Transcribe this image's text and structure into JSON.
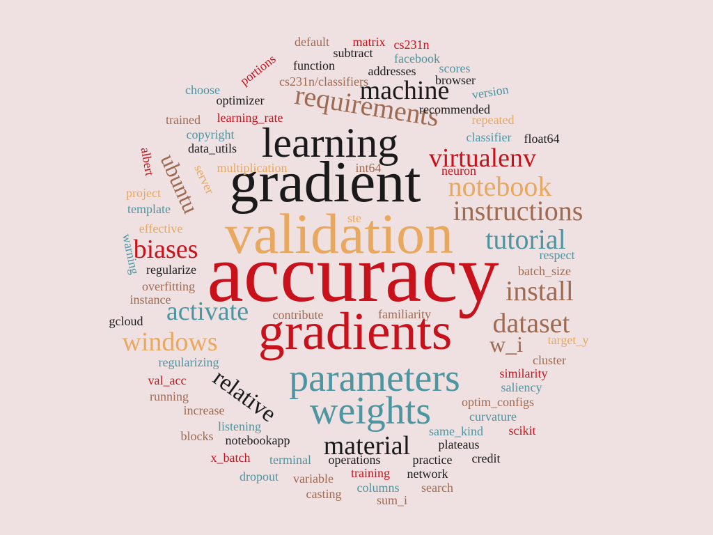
{
  "palette": {
    "background": "#efe1e1",
    "red": "#c8111a",
    "black": "#1a1a1a",
    "orange": "#e9a860",
    "teal": "#4c95a1",
    "brown": "#9e6a52"
  },
  "words": [
    {
      "text": "accuracy",
      "color": "red"
    },
    {
      "text": "validation",
      "color": "orange"
    },
    {
      "text": "gradient",
      "color": "black"
    },
    {
      "text": "gradients",
      "color": "red"
    },
    {
      "text": "learning",
      "color": "black"
    },
    {
      "text": "parameters",
      "color": "teal"
    },
    {
      "text": "weights",
      "color": "teal"
    },
    {
      "text": "requirements",
      "color": "brown"
    },
    {
      "text": "machine",
      "color": "black"
    },
    {
      "text": "notebook",
      "color": "orange"
    },
    {
      "text": "instructions",
      "color": "brown"
    },
    {
      "text": "virtualenv",
      "color": "red"
    },
    {
      "text": "tutorial",
      "color": "teal"
    },
    {
      "text": "install",
      "color": "brown"
    },
    {
      "text": "dataset",
      "color": "brown"
    },
    {
      "text": "material",
      "color": "black"
    },
    {
      "text": "windows",
      "color": "orange"
    },
    {
      "text": "activate",
      "color": "teal"
    },
    {
      "text": "biases",
      "color": "red"
    },
    {
      "text": "relative",
      "color": "black"
    },
    {
      "text": "ubuntu",
      "color": "brown"
    },
    {
      "text": "w_i",
      "color": "brown"
    },
    {
      "text": "default",
      "color": "brown"
    },
    {
      "text": "matrix",
      "color": "red"
    },
    {
      "text": "cs231n",
      "color": "red"
    },
    {
      "text": "subtract",
      "color": "black"
    },
    {
      "text": "function",
      "color": "black"
    },
    {
      "text": "facebook",
      "color": "teal"
    },
    {
      "text": "addresses",
      "color": "black"
    },
    {
      "text": "scores",
      "color": "teal"
    },
    {
      "text": "portions",
      "color": "red"
    },
    {
      "text": "cs231n/classifiers",
      "color": "brown"
    },
    {
      "text": "browser",
      "color": "black"
    },
    {
      "text": "choose",
      "color": "teal"
    },
    {
      "text": "version",
      "color": "teal"
    },
    {
      "text": "optimizer",
      "color": "black"
    },
    {
      "text": "recommended",
      "color": "black"
    },
    {
      "text": "trained",
      "color": "brown"
    },
    {
      "text": "learning_rate",
      "color": "red"
    },
    {
      "text": "repeated",
      "color": "orange"
    },
    {
      "text": "copyright",
      "color": "teal"
    },
    {
      "text": "classifier",
      "color": "teal"
    },
    {
      "text": "float64",
      "color": "black"
    },
    {
      "text": "data_utils",
      "color": "black"
    },
    {
      "text": "albert",
      "color": "red"
    },
    {
      "text": "multiplication",
      "color": "orange"
    },
    {
      "text": "int64",
      "color": "brown"
    },
    {
      "text": "neuron",
      "color": "red"
    },
    {
      "text": "server",
      "color": "orange"
    },
    {
      "text": "project",
      "color": "orange"
    },
    {
      "text": "template",
      "color": "teal"
    },
    {
      "text": "effective",
      "color": "orange"
    },
    {
      "text": "ste",
      "color": "orange"
    },
    {
      "text": "warning",
      "color": "teal"
    },
    {
      "text": "respect",
      "color": "teal"
    },
    {
      "text": "regularize",
      "color": "black"
    },
    {
      "text": "batch_size",
      "color": "brown"
    },
    {
      "text": "overfitting",
      "color": "brown"
    },
    {
      "text": "instance",
      "color": "brown"
    },
    {
      "text": "contribute",
      "color": "brown"
    },
    {
      "text": "familiarity",
      "color": "brown"
    },
    {
      "text": "gcloud",
      "color": "black"
    },
    {
      "text": "target_y",
      "color": "orange"
    },
    {
      "text": "regularizing",
      "color": "teal"
    },
    {
      "text": "cluster",
      "color": "brown"
    },
    {
      "text": "val_acc",
      "color": "red"
    },
    {
      "text": "similarity",
      "color": "red"
    },
    {
      "text": "saliency",
      "color": "teal"
    },
    {
      "text": "running",
      "color": "brown"
    },
    {
      "text": "optim_configs",
      "color": "brown"
    },
    {
      "text": "increase",
      "color": "brown"
    },
    {
      "text": "curvature",
      "color": "teal"
    },
    {
      "text": "listening",
      "color": "teal"
    },
    {
      "text": "same_kind",
      "color": "teal"
    },
    {
      "text": "scikit",
      "color": "red"
    },
    {
      "text": "blocks",
      "color": "brown"
    },
    {
      "text": "notebookapp",
      "color": "black"
    },
    {
      "text": "plateaus",
      "color": "black"
    },
    {
      "text": "x_batch",
      "color": "red"
    },
    {
      "text": "terminal",
      "color": "teal"
    },
    {
      "text": "operations",
      "color": "black"
    },
    {
      "text": "practice",
      "color": "black"
    },
    {
      "text": "credit",
      "color": "black"
    },
    {
      "text": "dropout",
      "color": "teal"
    },
    {
      "text": "variable",
      "color": "brown"
    },
    {
      "text": "training",
      "color": "red"
    },
    {
      "text": "network",
      "color": "black"
    },
    {
      "text": "casting",
      "color": "brown"
    },
    {
      "text": "columns",
      "color": "teal"
    },
    {
      "text": "search",
      "color": "brown"
    },
    {
      "text": "sum_i",
      "color": "brown"
    }
  ]
}
